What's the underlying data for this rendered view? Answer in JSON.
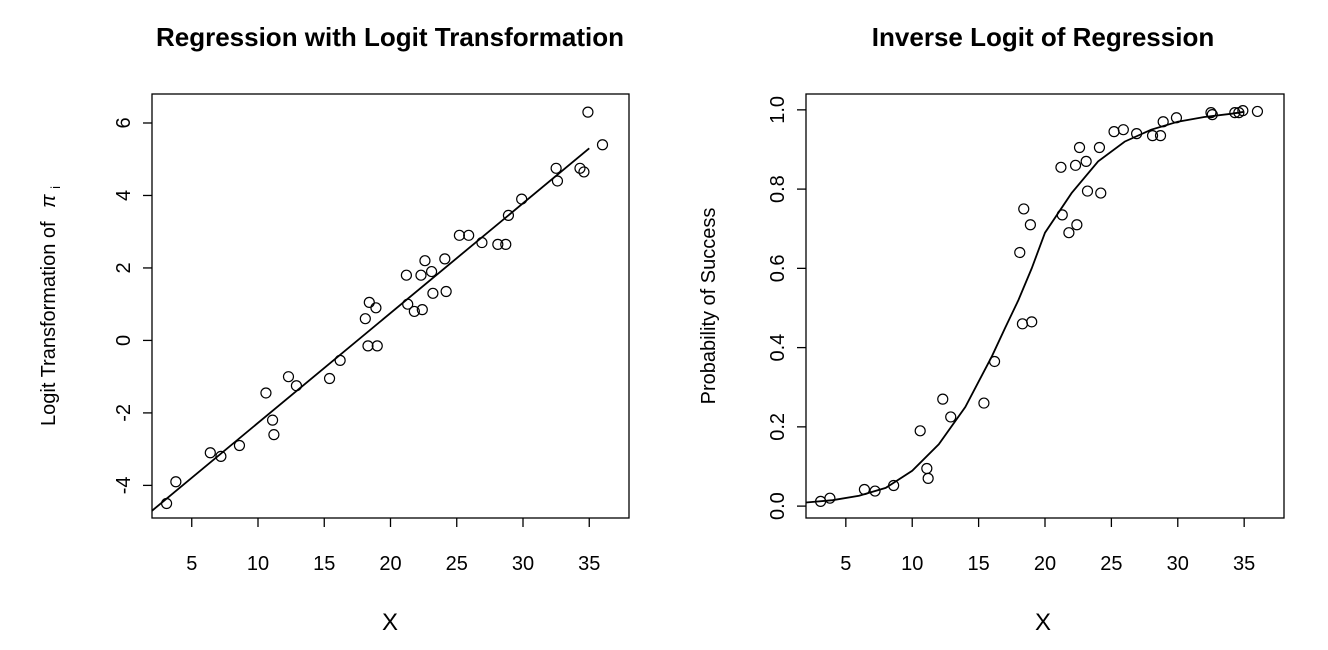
{
  "chart_data": [
    {
      "type": "scatter",
      "title": "Regression with Logit Transformation",
      "xlabel": "X",
      "ylabel_text": "Logit Transformation of",
      "ylabel_symbol": "π",
      "ylabel_subscript": "i",
      "xlim": [
        2,
        38
      ],
      "ylim": [
        -4.9,
        6.8
      ],
      "xticks": [
        5,
        10,
        15,
        20,
        25,
        30,
        35
      ],
      "yticks": [
        -4,
        -2,
        0,
        2,
        4,
        6
      ],
      "series": [
        {
          "kind": "points",
          "x": [
            3.1,
            3.8,
            6.4,
            7.2,
            8.6,
            10.6,
            11.1,
            11.2,
            12.3,
            12.9,
            15.4,
            16.2,
            18.1,
            18.3,
            18.4,
            18.9,
            19.0,
            21.2,
            21.3,
            21.8,
            22.3,
            22.4,
            22.6,
            23.1,
            23.2,
            24.1,
            24.2,
            25.2,
            25.9,
            26.9,
            28.1,
            28.7,
            28.9,
            29.9,
            32.5,
            32.6,
            34.3,
            34.6,
            34.9,
            36.0
          ],
          "y": [
            -4.5,
            -3.9,
            -3.1,
            -3.2,
            -2.9,
            -1.45,
            -2.2,
            -2.6,
            -1.0,
            -1.25,
            -1.05,
            -0.55,
            0.6,
            -0.15,
            1.05,
            0.9,
            -0.15,
            1.8,
            1.0,
            0.8,
            1.8,
            0.85,
            2.2,
            1.9,
            1.3,
            2.25,
            1.35,
            2.9,
            2.9,
            2.7,
            2.65,
            2.65,
            3.45,
            3.9,
            4.75,
            4.4,
            4.75,
            4.65,
            6.3,
            5.4
          ]
        },
        {
          "kind": "line",
          "x": [
            2,
            35
          ],
          "y": [
            -4.7,
            5.3
          ]
        }
      ]
    },
    {
      "type": "scatter",
      "title": "Inverse Logit of Regression",
      "xlabel": "X",
      "ylabel": "Probability of Success",
      "xlim": [
        2,
        38
      ],
      "ylim": [
        -0.03,
        1.04
      ],
      "xticks": [
        5,
        10,
        15,
        20,
        25,
        30,
        35
      ],
      "yticks": [
        0.0,
        0.2,
        0.4,
        0.6,
        0.8,
        1.0
      ],
      "ytick_labels": [
        "0.0",
        "0.2",
        "0.4",
        "0.6",
        "0.8",
        "1.0"
      ],
      "series": [
        {
          "kind": "points",
          "x": [
            3.1,
            3.8,
            6.4,
            7.2,
            8.6,
            10.6,
            11.1,
            11.2,
            12.3,
            12.9,
            15.4,
            16.2,
            18.1,
            18.3,
            18.4,
            18.9,
            19.0,
            21.2,
            21.3,
            21.8,
            22.3,
            22.4,
            22.6,
            23.1,
            23.2,
            24.1,
            24.2,
            25.2,
            25.9,
            26.9,
            28.1,
            28.7,
            28.9,
            29.9,
            32.5,
            32.6,
            34.3,
            34.6,
            34.9,
            36.0
          ],
          "y": [
            0.012,
            0.02,
            0.042,
            0.038,
            0.052,
            0.19,
            0.095,
            0.07,
            0.27,
            0.225,
            0.26,
            0.365,
            0.64,
            0.46,
            0.75,
            0.71,
            0.465,
            0.855,
            0.735,
            0.69,
            0.86,
            0.71,
            0.905,
            0.87,
            0.795,
            0.905,
            0.79,
            0.945,
            0.95,
            0.94,
            0.935,
            0.935,
            0.97,
            0.98,
            0.993,
            0.988,
            0.993,
            0.993,
            0.998,
            0.996
          ]
        },
        {
          "kind": "curve",
          "x": [
            2,
            4,
            6,
            8,
            10,
            12,
            14,
            16,
            17,
            18,
            19,
            20,
            22,
            24,
            26,
            28,
            30,
            32,
            34,
            35
          ],
          "y": [
            0.009,
            0.015,
            0.026,
            0.046,
            0.089,
            0.156,
            0.25,
            0.378,
            0.45,
            0.52,
            0.6,
            0.69,
            0.79,
            0.87,
            0.92,
            0.95,
            0.97,
            0.982,
            0.99,
            0.995
          ]
        }
      ]
    }
  ]
}
